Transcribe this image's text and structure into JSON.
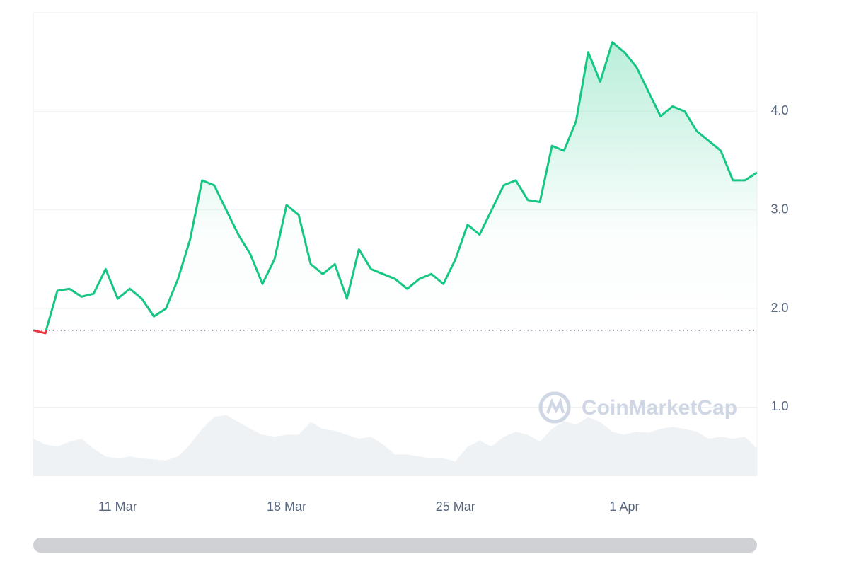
{
  "chart_data": {
    "type": "line",
    "watermark": "CoinMarketCap",
    "x": [
      7.5,
      8,
      8.5,
      9,
      9.5,
      10,
      10.5,
      11,
      11.5,
      12,
      12.5,
      13,
      13.5,
      14,
      14.5,
      15,
      15.5,
      16,
      16.5,
      17,
      17.5,
      18,
      18.5,
      19,
      19.5,
      20,
      20.5,
      21,
      21.5,
      22,
      22.5,
      23,
      23.5,
      24,
      24.5,
      25,
      25.5,
      26,
      26.5,
      27,
      27.5,
      28,
      28.5,
      29,
      29.5,
      30,
      30.5,
      31,
      31.5,
      32,
      32.5,
      33,
      33.5,
      34,
      34.5,
      35,
      35.5,
      36,
      36.5,
      37,
      37.5
    ],
    "series": [
      {
        "color": "#16c784",
        "below_color": "#ea3943",
        "values": [
          1.78,
          1.75,
          2.18,
          2.2,
          2.12,
          2.15,
          2.4,
          2.1,
          2.2,
          2.1,
          1.92,
          2.0,
          2.3,
          2.7,
          3.3,
          3.25,
          3.0,
          2.75,
          2.55,
          2.25,
          2.5,
          3.05,
          2.95,
          2.45,
          2.35,
          2.45,
          2.1,
          2.6,
          2.4,
          2.35,
          2.3,
          2.2,
          2.3,
          2.35,
          2.25,
          2.5,
          2.85,
          2.75,
          3.0,
          3.25,
          3.3,
          3.1,
          3.08,
          3.65,
          3.6,
          3.9,
          4.6,
          4.3,
          4.7,
          4.6,
          4.45,
          4.2,
          3.95,
          4.05,
          4.0,
          3.8,
          3.7,
          3.6,
          3.3,
          3.3,
          3.38
        ]
      }
    ],
    "volume": {
      "color": "#eff2f5",
      "values": [
        0.68,
        0.62,
        0.6,
        0.65,
        0.68,
        0.58,
        0.5,
        0.48,
        0.5,
        0.48,
        0.47,
        0.46,
        0.5,
        0.62,
        0.78,
        0.9,
        0.92,
        0.85,
        0.78,
        0.72,
        0.7,
        0.72,
        0.72,
        0.85,
        0.78,
        0.76,
        0.72,
        0.68,
        0.7,
        0.62,
        0.52,
        0.52,
        0.5,
        0.48,
        0.48,
        0.45,
        0.6,
        0.66,
        0.6,
        0.7,
        0.75,
        0.72,
        0.65,
        0.78,
        0.86,
        0.82,
        0.9,
        0.85,
        0.75,
        0.72,
        0.75,
        0.74,
        0.78,
        0.8,
        0.78,
        0.75,
        0.68,
        0.7,
        0.68,
        0.7,
        0.58
      ]
    },
    "reference": 1.78,
    "xlim": [
      7.5,
      37.5
    ],
    "xticks": [
      {
        "value": 11,
        "label": "11 Mar"
      },
      {
        "value": 18,
        "label": "18 Mar"
      },
      {
        "value": 25,
        "label": "25 Mar"
      },
      {
        "value": 32,
        "label": "1 Apr"
      }
    ],
    "ylim": [
      0.3,
      5.0
    ],
    "yticks": [
      {
        "value": 1,
        "label": "1.0"
      },
      {
        "value": 2,
        "label": "2.0"
      },
      {
        "value": 3,
        "label": "3.0"
      },
      {
        "value": 4,
        "label": "4.0"
      }
    ],
    "grid": true
  }
}
